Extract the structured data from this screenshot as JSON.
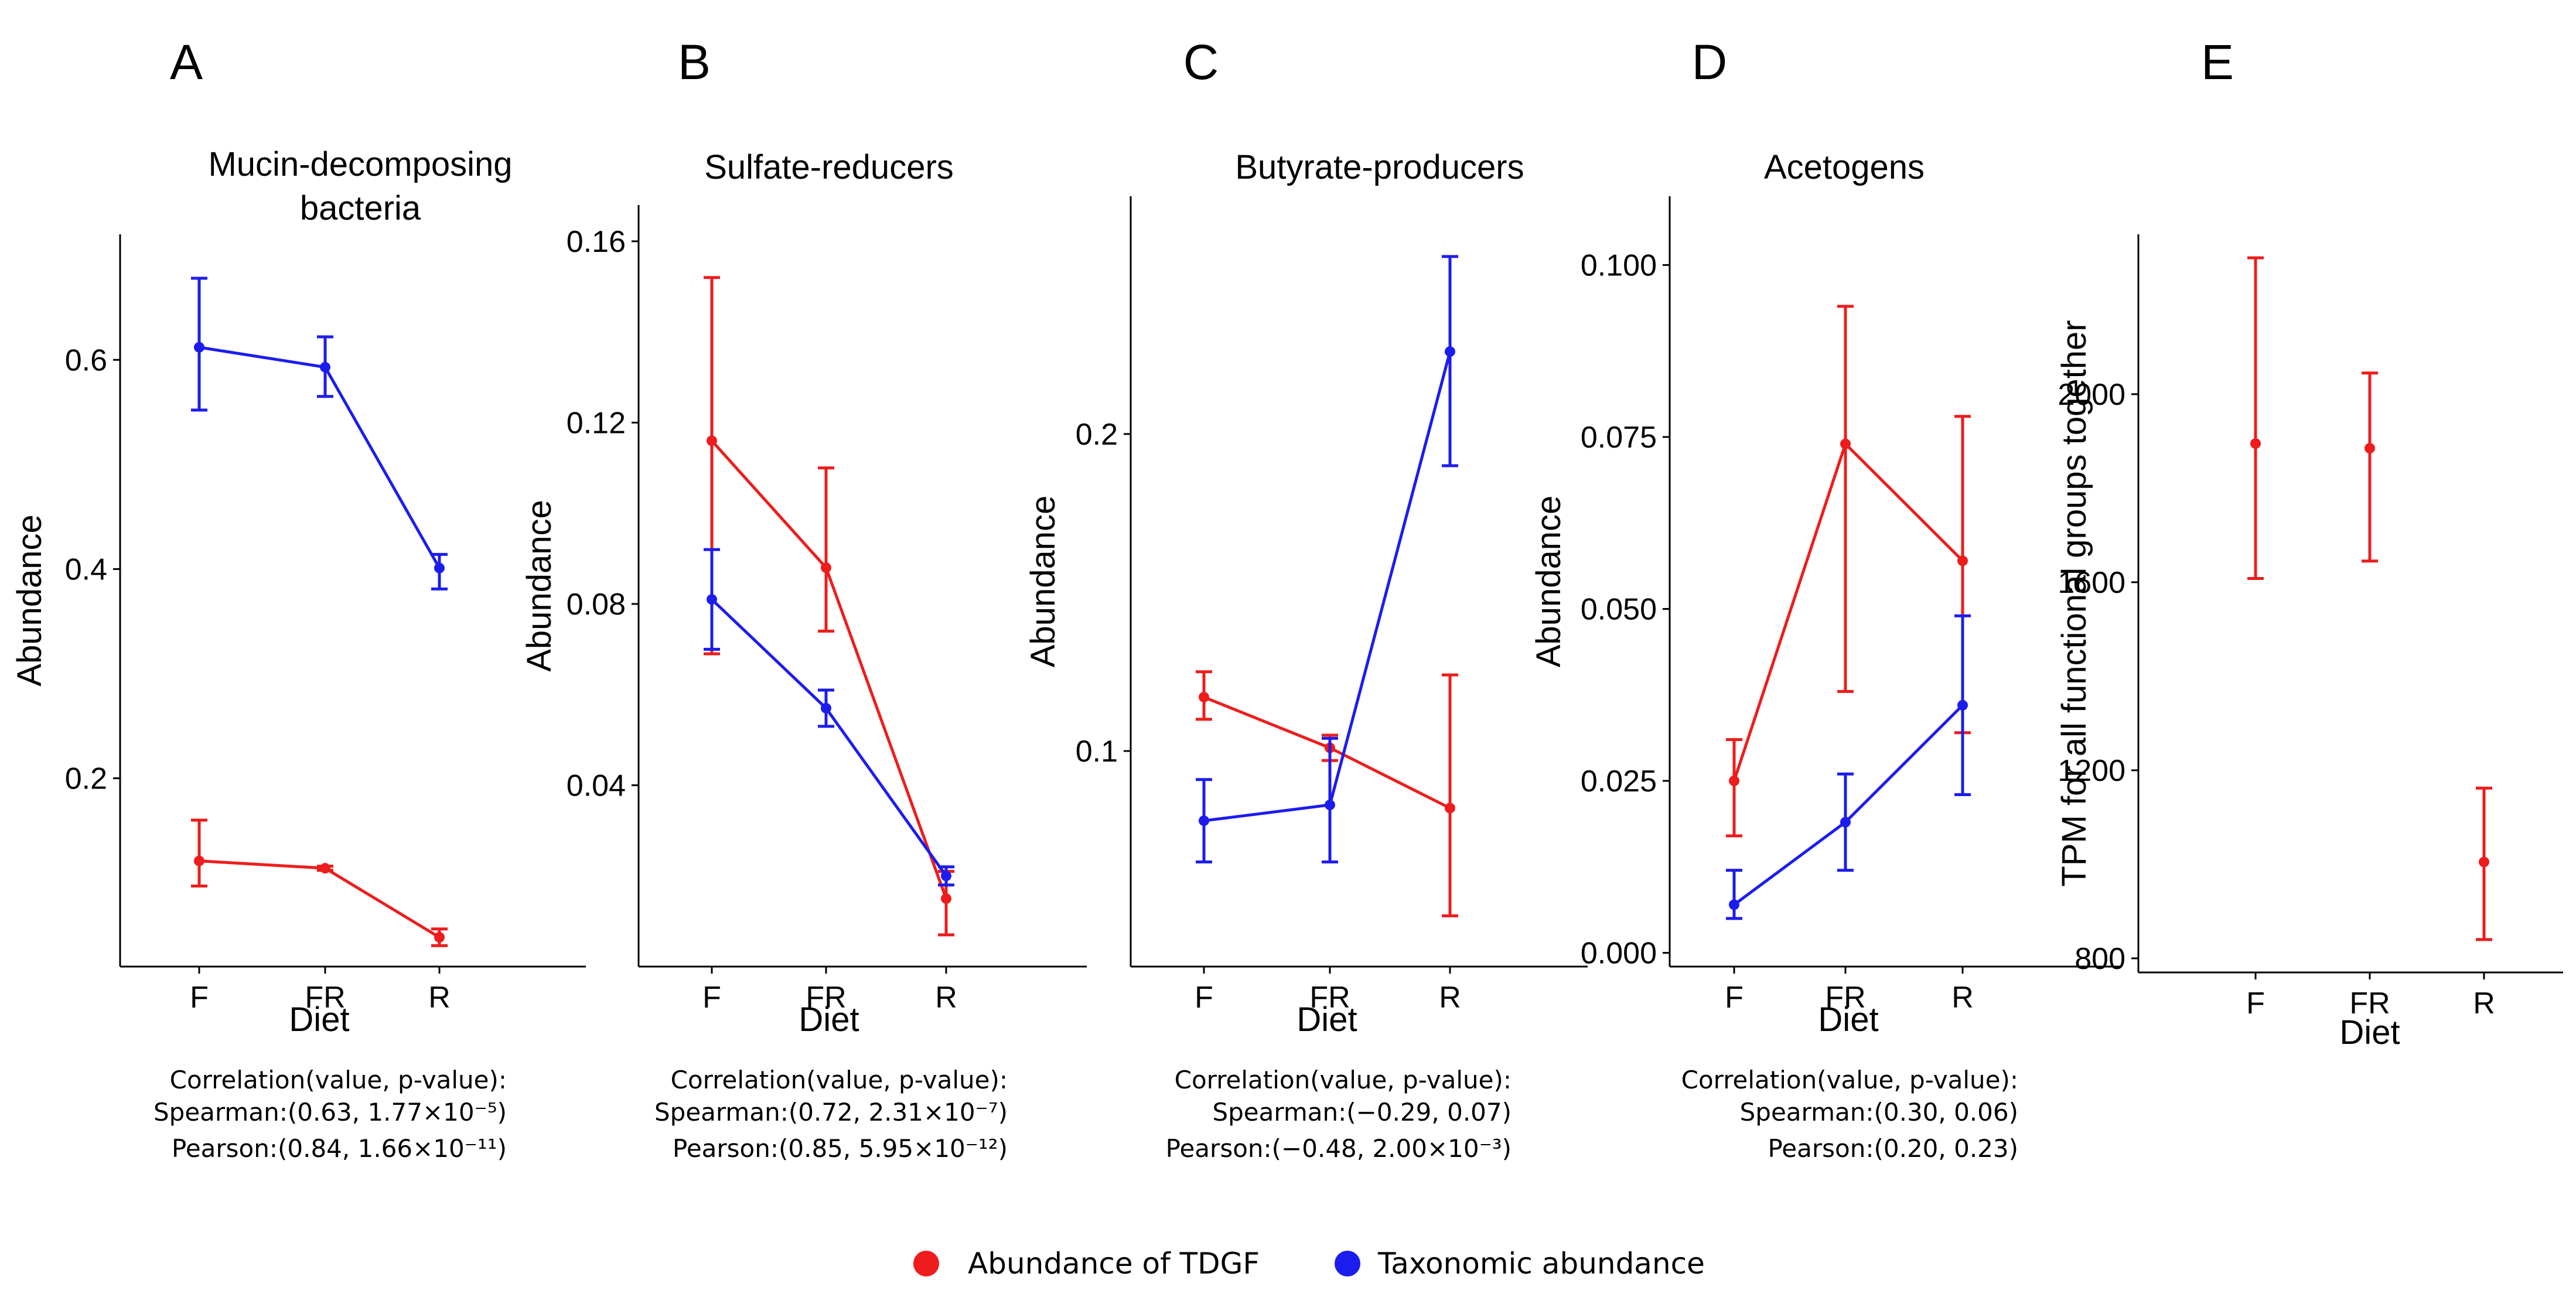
{
  "colors": {
    "tdgf": "#ee1c1c",
    "taxonomic": "#1c1cee"
  },
  "legend": {
    "items": [
      {
        "key": "tdgf",
        "label": "Abundance of TDGF"
      },
      {
        "key": "taxonomic",
        "label": "Taxonomic abundance"
      }
    ]
  },
  "chart_data": [
    {
      "id": "A",
      "letter": "A",
      "type": "line",
      "title": [
        "Mucin-decomposing",
        "bacteria"
      ],
      "xlabel": "Diet",
      "ylabel": "Abundance",
      "categories": [
        "F",
        "FR",
        "R"
      ],
      "ylim": [
        0.02,
        0.72
      ],
      "yticks": [
        0.2,
        0.4,
        0.6
      ],
      "ytick_labels": [
        "0.2",
        "0.4",
        "0.6"
      ],
      "series": [
        {
          "key": "tdgf",
          "name": "Abundance of TDGF",
          "values": [
            0.121,
            0.114,
            0.048
          ],
          "lower": [
            0.097,
            0.112,
            0.04
          ],
          "upper": [
            0.16,
            0.116,
            0.056
          ],
          "connect": true
        },
        {
          "key": "taxonomic",
          "name": "Taxonomic abundance",
          "values": [
            0.612,
            0.593,
            0.401
          ],
          "lower": [
            0.552,
            0.565,
            0.381
          ],
          "upper": [
            0.678,
            0.622,
            0.414
          ],
          "connect": true
        }
      ],
      "annotations": [
        "Correlation(value, p-value):",
        "Spearman:(0.63, 1.77×10⁻⁵)",
        "Pearson:(0.84, 1.66×10⁻¹¹)"
      ]
    },
    {
      "id": "B",
      "letter": "B",
      "type": "line",
      "title": [
        "Sulfate-reducers"
      ],
      "xlabel": "Diet",
      "ylabel": "Abundance",
      "categories": [
        "F",
        "FR",
        "R"
      ],
      "ylim": [
        0.0,
        0.168
      ],
      "yticks": [
        0.04,
        0.08,
        0.12,
        0.16
      ],
      "ytick_labels": [
        "0.04",
        "0.08",
        "0.12",
        "0.16"
      ],
      "series": [
        {
          "key": "tdgf",
          "name": "Abundance of TDGF",
          "values": [
            0.116,
            0.088,
            0.015
          ],
          "lower": [
            0.069,
            0.074,
            0.007
          ],
          "upper": [
            0.152,
            0.11,
            0.021
          ],
          "connect": true
        },
        {
          "key": "taxonomic",
          "name": "Taxonomic abundance",
          "values": [
            0.081,
            0.057,
            0.02
          ],
          "lower": [
            0.07,
            0.053,
            0.018
          ],
          "upper": [
            0.092,
            0.061,
            0.022
          ],
          "connect": true
        }
      ],
      "annotations": [
        "Correlation(value, p-value):",
        "Spearman:(0.72, 2.31×10⁻⁷)",
        "Pearson:(0.85, 5.95×10⁻¹²)"
      ]
    },
    {
      "id": "C",
      "letter": "C",
      "type": "line",
      "title": [
        "Butyrate-producers"
      ],
      "xlabel": "Diet",
      "ylabel": "Abundance",
      "categories": [
        "F",
        "FR",
        "R"
      ],
      "ylim": [
        0.032,
        0.275
      ],
      "yticks": [
        0.1,
        0.2
      ],
      "ytick_labels": [
        "0.1",
        "0.2"
      ],
      "series": [
        {
          "key": "tdgf",
          "name": "Abundance of TDGF",
          "values": [
            0.117,
            0.101,
            0.082
          ],
          "lower": [
            0.11,
            0.097,
            0.048
          ],
          "upper": [
            0.125,
            0.105,
            0.124
          ],
          "connect": true
        },
        {
          "key": "taxonomic",
          "name": "Taxonomic abundance",
          "values": [
            0.078,
            0.083,
            0.226
          ],
          "lower": [
            0.065,
            0.065,
            0.19
          ],
          "upper": [
            0.091,
            0.104,
            0.256
          ],
          "connect": true
        }
      ],
      "annotations": [
        "Correlation(value, p-value):",
        "Spearman:(−0.29, 0.07)",
        "Pearson:(−0.48, 2.00×10⁻³)"
      ]
    },
    {
      "id": "D",
      "letter": "D",
      "type": "line",
      "title": [
        "Acetogens"
      ],
      "xlabel": "Diet",
      "ylabel": "Abundance",
      "categories": [
        "F",
        "FR",
        "R"
      ],
      "ylim": [
        -0.002,
        0.11
      ],
      "yticks": [
        0.0,
        0.025,
        0.05,
        0.075,
        0.1
      ],
      "ytick_labels": [
        "0.000",
        "0.025",
        "0.050",
        "0.075",
        "0.100"
      ],
      "series": [
        {
          "key": "tdgf",
          "name": "Abundance of TDGF",
          "values": [
            0.025,
            0.074,
            0.057
          ],
          "lower": [
            0.017,
            0.038,
            0.032
          ],
          "upper": [
            0.031,
            0.094,
            0.078
          ],
          "connect": true
        },
        {
          "key": "taxonomic",
          "name": "Taxonomic abundance",
          "values": [
            0.007,
            0.019,
            0.036
          ],
          "lower": [
            0.005,
            0.012,
            0.023
          ],
          "upper": [
            0.012,
            0.026,
            0.049
          ],
          "connect": true
        }
      ],
      "annotations": [
        "Correlation(value, p-value):",
        "Spearman:(0.30, 0.06)",
        "Pearson:(0.20, 0.23)"
      ]
    },
    {
      "id": "E",
      "letter": "E",
      "type": "scatter",
      "title": [],
      "xlabel": "Diet",
      "ylabel": "TPM for all functional groups together",
      "categories": [
        "F",
        "FR",
        "R"
      ],
      "ylim": [
        770,
        2340
      ],
      "yticks": [
        800,
        1200,
        1600,
        2000
      ],
      "ytick_labels": [
        "800",
        "1200",
        "1600",
        "2000"
      ],
      "series": [
        {
          "key": "tdgf",
          "name": "Abundance of TDGF",
          "values": [
            1895,
            1885,
            1005
          ],
          "lower": [
            1608,
            1645,
            840
          ],
          "upper": [
            2290,
            2045,
            1162
          ],
          "connect": false
        }
      ],
      "annotations": []
    }
  ]
}
